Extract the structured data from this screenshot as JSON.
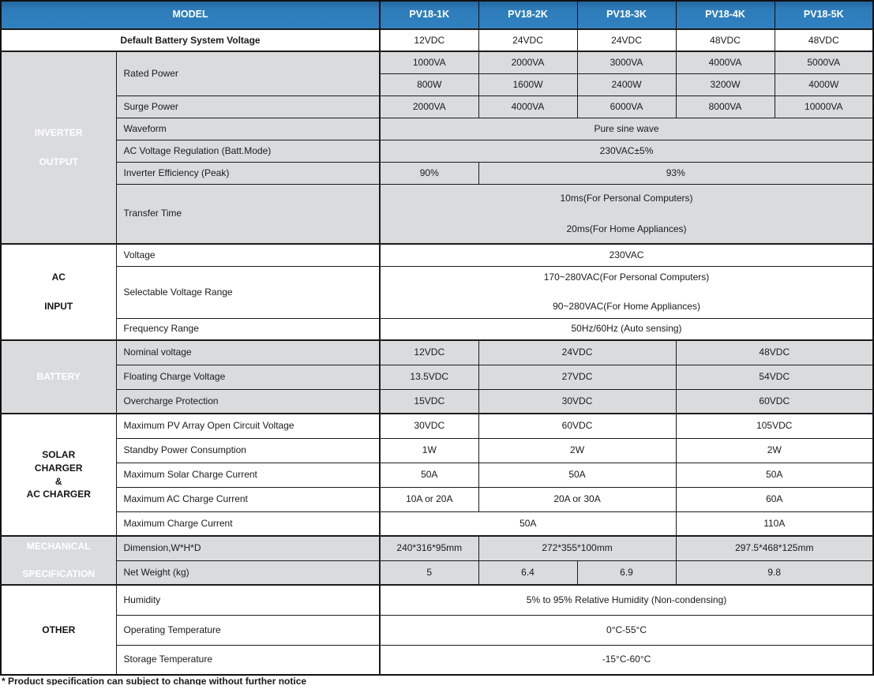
{
  "colors": {
    "header_blue": "#2e7cba",
    "section_gray": "#8a8d90",
    "row_gray": "#d9dbdd",
    "border": "#1b1b1b"
  },
  "t": {
    "header": {
      "model": "MODEL",
      "columns": [
        "PV18-1K",
        "PV18-2K",
        "PV18-3K",
        "PV18-4K",
        "PV18-5K"
      ]
    },
    "defaultBattery": {
      "label": "Default Battery System Voltage",
      "values": [
        "12VDC",
        "24VDC",
        "24VDC",
        "48VDC",
        "48VDC"
      ]
    },
    "inverter": {
      "title1": "INVERTER",
      "title2": "OUTPUT",
      "rated": {
        "label": "Rated Power",
        "va": [
          "1000VA",
          "2000VA",
          "3000VA",
          "4000VA",
          "5000VA"
        ],
        "w": [
          "800W",
          "1600W",
          "2400W",
          "3200W",
          "4000W"
        ]
      },
      "surge": {
        "label": "Surge Power",
        "values": [
          "2000VA",
          "4000VA",
          "6000VA",
          "8000VA",
          "10000VA"
        ]
      },
      "waveform": {
        "label": "Waveform",
        "value": "Pure sine wave"
      },
      "acVoltReg": {
        "label": "AC Voltage Regulation (Batt.Mode)",
        "value": "230VAC±5%"
      },
      "efficiency": {
        "label": "Inverter Efficiency (Peak)",
        "v1": "90%",
        "v2": "93%"
      },
      "transferTime": {
        "label": "Transfer Time",
        "line1": "10ms(For Personal Computers)",
        "line2": "20ms(For Home Appliances)"
      }
    },
    "acInput": {
      "title1": "AC",
      "title2": "INPUT",
      "voltage": {
        "label": "Voltage",
        "value": "230VAC"
      },
      "selectableRange": {
        "label": "Selectable Voltage Range",
        "line1": "170~280VAC(For Personal Computers)",
        "line2": "90~280VAC(For Home Appliances)"
      },
      "frequency": {
        "label": "Frequency Range",
        "value": "50Hz/60Hz (Auto sensing)"
      }
    },
    "battery": {
      "title": "BATTERY",
      "nominal": {
        "label": "Nominal voltage",
        "v1": "12VDC",
        "v2": "24VDC",
        "v3": "48VDC"
      },
      "floating": {
        "label": "Floating Charge Voltage",
        "v1": "13.5VDC",
        "v2": "27VDC",
        "v3": "54VDC"
      },
      "overcharge": {
        "label": "Overcharge Protection",
        "v1": "15VDC",
        "v2": "30VDC",
        "v3": "60VDC"
      }
    },
    "solar": {
      "title1": "SOLAR",
      "title2": "CHARGER",
      "title3": "&",
      "title4": "AC CHARGER",
      "pvArray": {
        "label": "Maximum PV Array Open Circuit Voltage",
        "v1": "30VDC",
        "v2": "60VDC",
        "v3": "105VDC"
      },
      "standby": {
        "label": "Standby Power Consumption",
        "v1": "1W",
        "v2": "2W",
        "v3": "2W"
      },
      "maxSolarCharge": {
        "label": "Maximum Solar Charge Current",
        "v1": "50A",
        "v2": "50A",
        "v3": "50A"
      },
      "maxAcCharge": {
        "label": "Maximum AC Charge Current",
        "v1": "10A or 20A",
        "v2": "20A or 30A",
        "v3": "60A"
      },
      "maxCharge": {
        "label": "Maximum Charge Current",
        "v1": "50A",
        "v2": "110A"
      }
    },
    "mechanical": {
      "title1": "MECHANICAL",
      "title2": "SPECIFICATION",
      "dimension": {
        "label": "Dimension,W*H*D",
        "v1": "240*316*95mm",
        "v2": "272*355*100mm",
        "v3": "297.5*468*125mm"
      },
      "netWeight": {
        "label": "Net Weight (kg)",
        "v1": "5",
        "v2": "6.4",
        "v3": "6.9",
        "v4": "9.8"
      }
    },
    "other": {
      "title": "OTHER",
      "humidity": {
        "label": "Humidity",
        "value": "5% to 95% Relative Humidity (Non-condensing)"
      },
      "operatingTemp": {
        "label": "Operating Temperature",
        "value": "0°C-55°C"
      },
      "storageTemp": {
        "label": "Storage Temperature",
        "value": "-15°C-60°C"
      }
    },
    "footnote": "* Product specification can subject to change without further notice"
  }
}
